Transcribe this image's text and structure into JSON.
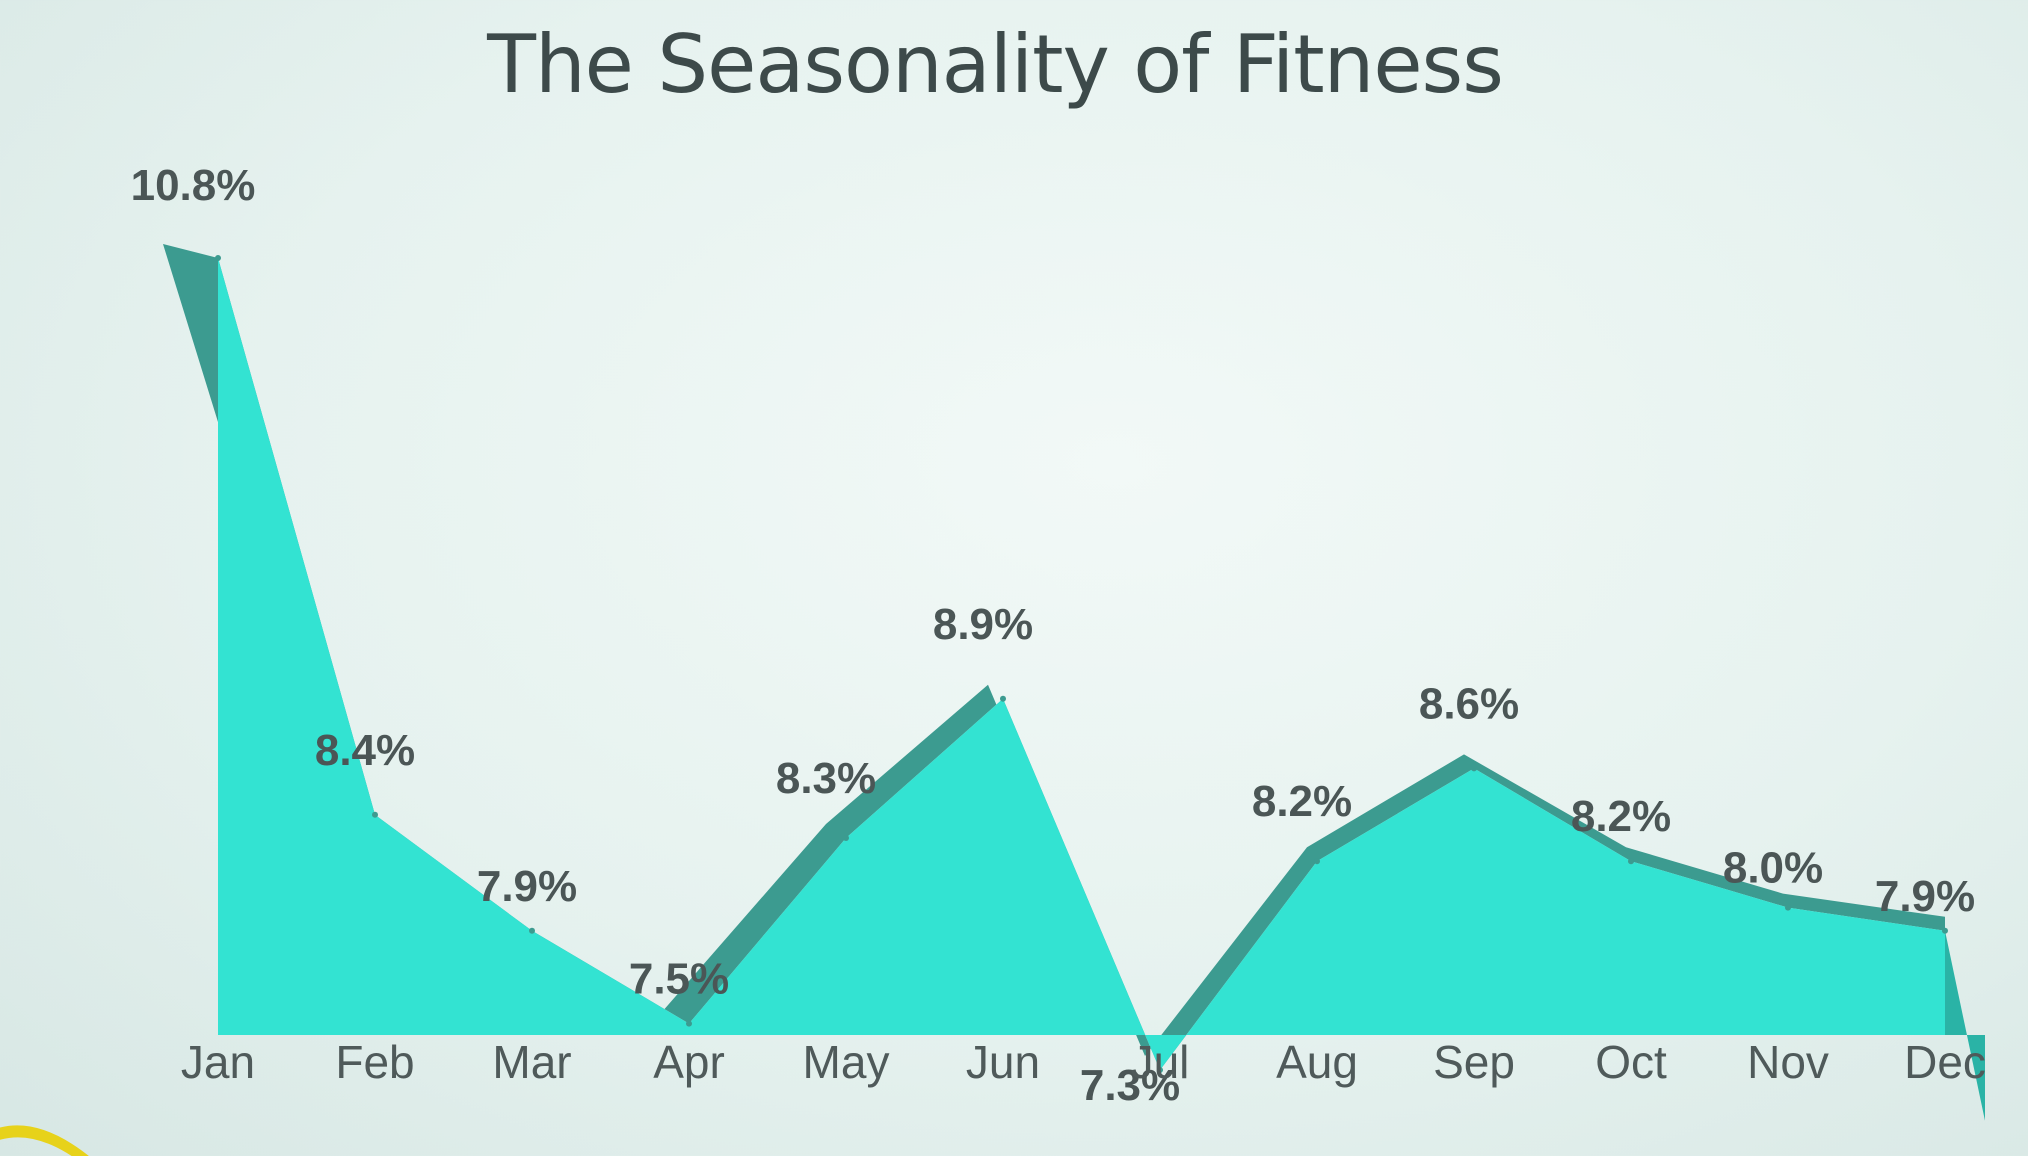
{
  "chart_data": {
    "type": "area",
    "title": "The Seasonality of Fitness",
    "categories": [
      "Jan",
      "Feb",
      "Mar",
      "Apr",
      "May",
      "Jun",
      "Jul",
      "Aug",
      "Sep",
      "Oct",
      "Nov",
      "Dec"
    ],
    "values": [
      10.8,
      8.4,
      7.9,
      7.5,
      8.3,
      8.9,
      7.3,
      8.2,
      8.6,
      8.2,
      8.0,
      7.9
    ],
    "data_labels": [
      "10.8%",
      "8.4%",
      "7.9%",
      "7.5%",
      "8.3%",
      "8.9%",
      "7.3%",
      "8.2%",
      "8.6%",
      "8.2%",
      "8.0%",
      "7.9%"
    ],
    "xlabel": "",
    "ylabel": "",
    "grid": false,
    "legend": "none",
    "colors": {
      "area": "#33e3d2",
      "line": "#3c9b90",
      "side": "#2ab3a6",
      "labels": "#4b5656"
    }
  }
}
